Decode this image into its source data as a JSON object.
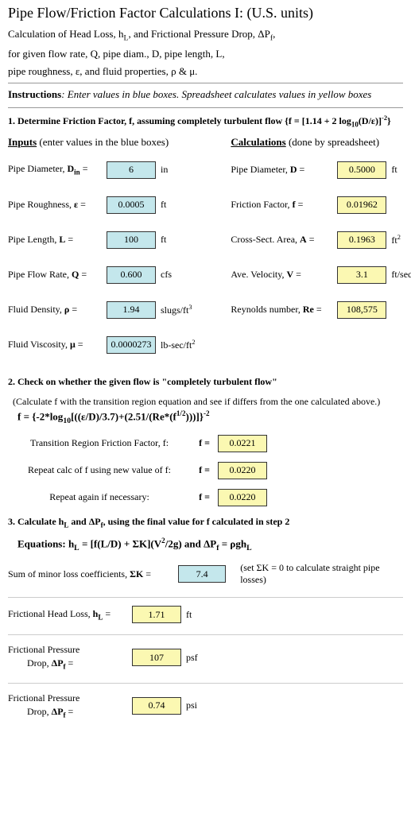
{
  "title": "Pipe Flow/Friction Factor Calculations I:  (U.S. units)",
  "header": {
    "l1a": "Calculation of Head Loss, h",
    "l1b": ", and Frictional Pressure Drop, ΔP",
    "l1c": ",",
    "l2": "for given flow rate, Q, pipe diam., D, pipe length, L,",
    "l3": "pipe roughness, ε, and fluid properties, ρ & μ."
  },
  "instr": {
    "b": "Instructions",
    "colon": ":",
    "txt": "  Enter values in blue boxes.  Spreadsheet calculates values in yellow boxes"
  },
  "sec1": {
    "head_a": "1. Determine Friction Factor, f, assuming completely turbulent flow   {f = [1.14 + 2 log",
    "head_b": "(D/ε)]",
    "head_c": "}",
    "inputs_u": "Inputs",
    "inputs_rest": "  (enter values in the blue boxes)",
    "calc_u": "Calculations",
    "calc_rest": "  (done by spreadsheet)"
  },
  "inputs": {
    "diam": {
      "l1": "Pipe Diameter, ",
      "sym": "D",
      "sub": "in",
      "eq": " =",
      "val": "6",
      "unit": "in"
    },
    "rough": {
      "l1": "Pipe Roughness, ",
      "sym": "ε",
      "eq": " =",
      "val": "0.0005",
      "unit": "ft"
    },
    "len": {
      "l1": "Pipe Length, ",
      "sym": "L",
      "eq": " =",
      "val": "100",
      "unit": "ft"
    },
    "flow": {
      "l1": "Pipe Flow Rate, ",
      "sym": "Q",
      "eq": " =",
      "val": "0.600",
      "unit": "cfs"
    },
    "dens": {
      "l1": "Fluid Density, ",
      "sym": "ρ",
      "eq": " =",
      "val": "1.94",
      "unit": "slugs/ft",
      "sup": "3"
    },
    "visc": {
      "l1": "Fluid Viscosity, ",
      "sym": "μ",
      "eq": " =",
      "val": "0.0000273",
      "unit": "lb-sec/ft",
      "sup": "2"
    }
  },
  "calcs": {
    "diam": {
      "l": "Pipe Diameter, ",
      "sym": "D",
      "eq": " =",
      "val": "0.5000",
      "unit": "ft"
    },
    "ff": {
      "l": "Friction Factor, ",
      "sym": "f",
      "eq": " =",
      "val": "0.01962",
      "unit": ""
    },
    "area": {
      "l": "Cross-Sect. Area, ",
      "sym": "A",
      "eq": " =",
      "val": "0.1963",
      "unit": "ft",
      "sup": "2"
    },
    "vel": {
      "l": "Ave. Velocity, ",
      "sym": "V",
      "eq": " =",
      "val": "3.1",
      "unit": "ft/sec"
    },
    "re": {
      "l": "Reynolds number, ",
      "sym": "Re",
      "eq": " =",
      "val": "108,575",
      "unit": ""
    }
  },
  "sec2": {
    "head": "2. Check on whether the given flow is \"completely turbulent flow\"",
    "note": "(Calculate f with the transition region equation and see if differs from the one calculated above.)",
    "eq_a": "f = {-2*log",
    "eq_b": "[((ε/D)/3.7)+(2.51/(Re*(f",
    "eq_c": ")))]}",
    "r1": {
      "lbl": "Transition Region Friction Factor, f:",
      "eq": "f =",
      "val": "0.0221"
    },
    "r2": {
      "lbl": "Repeat calc of f using new value of f:",
      "eq": "f =",
      "val": "0.0220"
    },
    "r3": {
      "lbl": "Repeat again if necessary:",
      "eq": "f =",
      "val": "0.0220"
    }
  },
  "sec3": {
    "head_a": "3. Calculate h",
    "head_b": " and ΔP",
    "head_c": ", using the final value for f calculated in step 2",
    "eqs_a": "Equations:   h",
    "eqs_b": "  =  [f(L/D) + ΣK](V",
    "eqs_c": "/2g)    and  ΔP",
    "eqs_d": "  =  ρgh",
    "sumk": {
      "lbl": "Sum of minor loss coefficients, ",
      "sym": "ΣK",
      "eq": " =",
      "val": "7.4",
      "note": "(set ΣK = 0 to calculate straight pipe losses)"
    },
    "hl": {
      "lbl": "Frictional Head Loss, ",
      "sym": "h",
      "sub": "L",
      "eq": " =",
      "val": "1.71",
      "unit": "ft"
    },
    "dpf1": {
      "lbl1": "Frictional Pressure",
      "lbl2": "Drop, ",
      "sym": "ΔP",
      "sub": "f",
      "eq": " =",
      "val": "107",
      "unit": "psf"
    },
    "dpf2": {
      "lbl1": "Frictional Pressure",
      "lbl2": "Drop, ",
      "sym": "ΔP",
      "sub": "f",
      "eq": " =",
      "val": "0.74",
      "unit": "psi"
    }
  },
  "colors": {
    "input_bg": "#c4e7ec",
    "calc_bg": "#fbf8b2",
    "text": "#000000"
  }
}
